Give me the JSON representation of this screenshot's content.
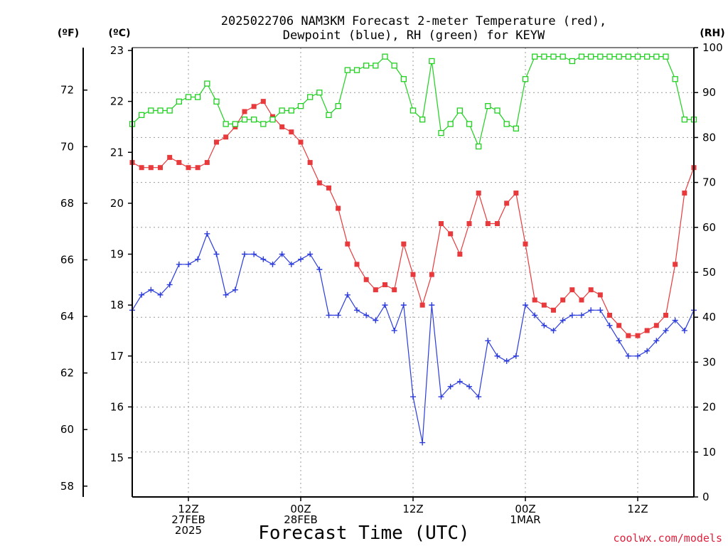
{
  "title": {
    "line1": "2025022706 NAM3KM Forecast 2-meter Temperature (red),",
    "line2": "Dewpoint (blue), RH (green) for KEYW"
  },
  "units": {
    "fahrenheit": "(ºF)",
    "celsius": "(ºC)",
    "rh": "(RH)"
  },
  "xlabel": "Forecast Time (UTC)",
  "credit": "coolwx.com/models",
  "colors": {
    "temp": "#e8393c",
    "dewpoint": "#2b3bdc",
    "rh": "#1fd01f",
    "grid": "#999999"
  },
  "chart_data": {
    "type": "line",
    "x_unit": "hours since 2025-02-27 06Z (forecast hour)",
    "x_range": [
      0,
      60
    ],
    "x_ticks": [
      {
        "x": 6,
        "lines": [
          "12Z",
          "27FEB",
          "2025"
        ]
      },
      {
        "x": 18,
        "lines": [
          "00Z",
          "28FEB"
        ]
      },
      {
        "x": 30,
        "lines": [
          "12Z"
        ]
      },
      {
        "x": 42,
        "lines": [
          "00Z",
          "1MAR"
        ]
      },
      {
        "x": 54,
        "lines": [
          "12Z"
        ]
      }
    ],
    "y_left_celsius": {
      "range": [
        14.2,
        23
      ],
      "ticks": [
        15,
        16,
        17,
        18,
        19,
        20,
        21,
        22,
        23
      ]
    },
    "y_left_fahrenheit": {
      "ticks": [
        58,
        60,
        62,
        64,
        66,
        68,
        70,
        72
      ]
    },
    "y_right_rh": {
      "range": [
        0,
        100
      ],
      "ticks": [
        0,
        10,
        20,
        30,
        40,
        50,
        60,
        70,
        80,
        90,
        100
      ]
    },
    "grid": true,
    "x": [
      0,
      1,
      2,
      3,
      4,
      5,
      6,
      7,
      8,
      9,
      10,
      11,
      12,
      13,
      14,
      15,
      16,
      17,
      18,
      19,
      20,
      21,
      22,
      23,
      24,
      25,
      26,
      27,
      28,
      29,
      30,
      31,
      32,
      33,
      34,
      35,
      36,
      37,
      38,
      39,
      40,
      41,
      42,
      43,
      44,
      45,
      46,
      47,
      48,
      49,
      50,
      51,
      52,
      53,
      54,
      55,
      56,
      57,
      58,
      59,
      60
    ],
    "series": [
      {
        "name": "Temperature",
        "axis": "celsius",
        "marker": "filled-square",
        "values": [
          20.8,
          20.7,
          20.7,
          20.7,
          20.9,
          20.8,
          20.7,
          20.7,
          20.8,
          21.2,
          21.3,
          21.5,
          21.8,
          21.9,
          22.0,
          21.7,
          21.5,
          21.4,
          21.2,
          20.8,
          20.4,
          20.3,
          19.9,
          19.2,
          18.8,
          18.5,
          18.3,
          18.4,
          18.3,
          19.2,
          18.6,
          18.0,
          18.6,
          19.6,
          19.4,
          19.0,
          19.6,
          20.2,
          19.6,
          19.6,
          20.0,
          20.2,
          19.2,
          18.1,
          18.0,
          17.9,
          18.1,
          18.3,
          18.1,
          18.3,
          18.2,
          17.8,
          17.6,
          17.4,
          17.4,
          17.5,
          17.6,
          17.8,
          18.8,
          20.2,
          20.7
        ]
      },
      {
        "name": "Dewpoint",
        "axis": "celsius",
        "marker": "plus",
        "values": [
          17.9,
          18.2,
          18.3,
          18.2,
          18.4,
          18.8,
          18.8,
          18.9,
          19.4,
          19.0,
          18.2,
          18.3,
          19.0,
          19.0,
          18.9,
          18.8,
          19.0,
          18.8,
          18.9,
          19.0,
          18.7,
          17.8,
          17.8,
          18.2,
          17.9,
          17.8,
          17.7,
          18.0,
          17.5,
          18.0,
          16.2,
          15.3,
          18.0,
          16.2,
          16.4,
          16.5,
          16.4,
          16.2,
          17.3,
          17.0,
          16.9,
          17.0,
          18.0,
          17.8,
          17.6,
          17.5,
          17.7,
          17.8,
          17.8,
          17.9,
          17.9,
          17.6,
          17.3,
          17.0,
          17.0,
          17.1,
          17.3,
          17.5,
          17.7,
          17.5,
          17.9
        ]
      },
      {
        "name": "RH",
        "axis": "rh",
        "marker": "open-square",
        "values": [
          83,
          85,
          86,
          86,
          86,
          88,
          89,
          89,
          92,
          88,
          83,
          83,
          84,
          84,
          83,
          84,
          86,
          86,
          87,
          89,
          90,
          85,
          87,
          95,
          95,
          96,
          96,
          98,
          96,
          93,
          86,
          84,
          97,
          81,
          83,
          86,
          83,
          78,
          87,
          86,
          83,
          82,
          93,
          98,
          98,
          98,
          98,
          97,
          98,
          98,
          98,
          98,
          98,
          98,
          98,
          98,
          98,
          98,
          93,
          84,
          84
        ]
      }
    ]
  }
}
